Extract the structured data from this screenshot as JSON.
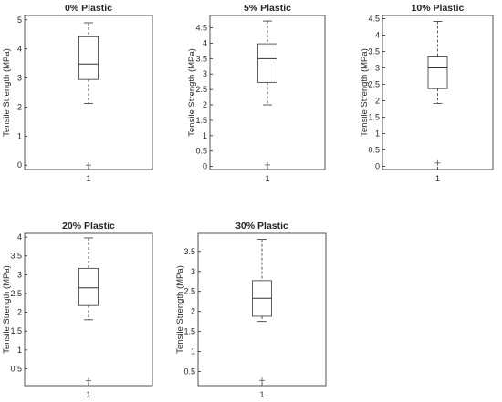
{
  "chart_data": [
    {
      "type": "box",
      "title": "0% Plastic",
      "ylabel": "Tensile Strength (MPa)",
      "categories": [
        "1"
      ],
      "ylim": [
        -0.15,
        5.15
      ],
      "yticks": [
        0,
        1,
        2,
        3,
        4,
        5
      ],
      "ytick_labels": [
        "0",
        "1",
        "2",
        "3",
        "4",
        "5"
      ],
      "box": {
        "whisker_low": 2.12,
        "q1": 2.95,
        "median": 3.48,
        "q3": 4.42,
        "whisker_high": 4.9
      },
      "outliers": [
        0
      ]
    },
    {
      "type": "box",
      "title": "5% Plastic",
      "ylabel": "Tensile Strength (MPa)",
      "categories": [
        "1"
      ],
      "ylim": [
        -0.1,
        4.9
      ],
      "yticks": [
        0,
        0.5,
        1,
        1.5,
        2,
        2.5,
        3,
        3.5,
        4,
        4.5
      ],
      "ytick_labels": [
        "0",
        "0.5",
        "1",
        "1.5",
        "2",
        "2.5",
        "3",
        "3.5",
        "4",
        "4.5"
      ],
      "box": {
        "whisker_low": 2.0,
        "q1": 2.73,
        "median": 3.5,
        "q3": 3.98,
        "whisker_high": 4.72
      },
      "outliers": [
        0.05
      ]
    },
    {
      "type": "box",
      "title": "10% Plastic",
      "ylabel": "Tensile Strength (MPa)",
      "categories": [
        "1"
      ],
      "ylim": [
        -0.1,
        4.6
      ],
      "yticks": [
        0,
        0.5,
        1,
        1.5,
        2,
        2.5,
        3,
        3.5,
        4,
        4.5
      ],
      "ytick_labels": [
        "0",
        "0.5",
        "1",
        "1.5",
        "2",
        "2.5",
        "3",
        "3.5",
        "4",
        "4.5"
      ],
      "box": {
        "whisker_low": 1.92,
        "q1": 2.37,
        "median": 3.0,
        "q3": 3.36,
        "whisker_high": 4.42
      },
      "outliers": [
        0.1
      ]
    },
    {
      "type": "box",
      "title": "20% Plastic",
      "ylabel": "Tensile Strength (MPa)",
      "categories": [
        "1"
      ],
      "ylim": [
        0.05,
        4.1
      ],
      "yticks": [
        0.5,
        1,
        1.5,
        2,
        2.5,
        3,
        3.5,
        4
      ],
      "ytick_labels": [
        "0.5",
        "1",
        "1.5",
        "2",
        "2.5",
        "3",
        "3.5",
        "4"
      ],
      "box": {
        "whisker_low": 1.8,
        "q1": 2.18,
        "median": 2.65,
        "q3": 3.17,
        "whisker_high": 3.98
      },
      "outliers": [
        0.18
      ]
    },
    {
      "type": "box",
      "title": "30% Plastic",
      "ylabel": "Tensile Strength (MPa)",
      "categories": [
        "1"
      ],
      "ylim": [
        0.15,
        3.95
      ],
      "yticks": [
        0.5,
        1,
        1.5,
        2,
        2.5,
        3,
        3.5
      ],
      "ytick_labels": [
        "0.5",
        "1",
        "1.5",
        "2",
        "2.5",
        "3",
        "3.5"
      ],
      "box": {
        "whisker_low": 1.75,
        "q1": 1.88,
        "median": 2.33,
        "q3": 2.77,
        "whisker_high": 3.8
      },
      "outliers": [
        0.28
      ]
    }
  ]
}
